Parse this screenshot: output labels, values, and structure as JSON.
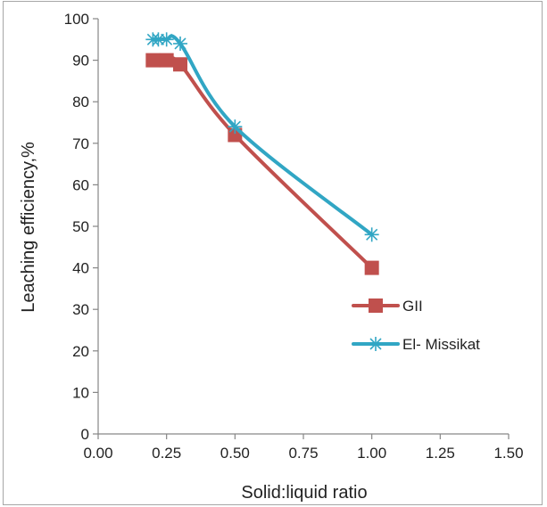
{
  "chart_data": {
    "type": "line",
    "xlabel": "Solid:liquid ratio",
    "ylabel": "Leaching efficiency,%",
    "xlim": [
      0,
      1.5
    ],
    "ylim": [
      0,
      100
    ],
    "xticks": [
      "0.00",
      "0.25",
      "0.50",
      "0.75",
      "1.00",
      "1.25",
      "1.50"
    ],
    "yticks": [
      "0",
      "10",
      "20",
      "30",
      "40",
      "50",
      "60",
      "70",
      "80",
      "90",
      "100"
    ],
    "grid": false,
    "legend_position": "right",
    "series": [
      {
        "name": "GII",
        "color": "#c0504d",
        "marker": "square",
        "x": [
          0.2,
          0.25,
          0.3,
          0.5,
          1.0
        ],
        "y": [
          90,
          90,
          89,
          72,
          40
        ]
      },
      {
        "name": "El- Missikat",
        "color": "#31a6c4",
        "marker": "asterisk",
        "x": [
          0.2,
          0.22,
          0.25,
          0.3,
          0.5,
          1.0
        ],
        "y": [
          95,
          95,
          95,
          94,
          74,
          48
        ]
      }
    ]
  }
}
